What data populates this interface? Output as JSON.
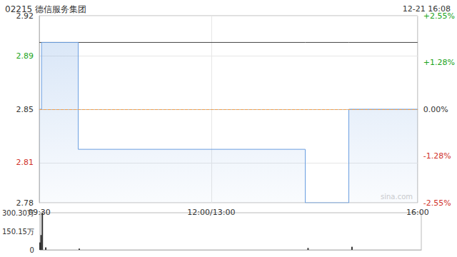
{
  "chart_data": [
    {
      "type": "line",
      "title": "02215 德信服务集团",
      "subtitle": "12-21 16:08",
      "watermark": "sina.com",
      "x": [
        0,
        2,
        34,
        232,
        270,
        330
      ],
      "xlim": [
        0,
        330
      ],
      "xticks": [
        {
          "value": 0,
          "label": "09:30"
        },
        {
          "value": 150,
          "label": "12:00/13:00"
        },
        {
          "value": 330,
          "label": "16:00"
        }
      ],
      "series": [
        {
          "type": "area",
          "color": "#6a9ee0",
          "line_style": "step",
          "values": [
            2.85,
            2.9,
            2.82,
            2.78,
            2.85,
            2.85
          ]
        },
        {
          "type": "line",
          "color": "#444444",
          "values": [
            2.9,
            2.9,
            2.9,
            2.9,
            2.9,
            2.9
          ]
        }
      ],
      "prev_close": 2.85,
      "ylim": [
        2.78,
        2.92
      ],
      "yticks": [
        2.78,
        2.81,
        2.85,
        2.89,
        2.92
      ],
      "y2lim": [
        -2.55,
        2.55
      ],
      "y2ticks": [
        {
          "value": -2.55,
          "label": "-2.55%"
        },
        {
          "value": -1.28,
          "label": "-1.28%"
        },
        {
          "value": 0,
          "label": "0.00%"
        },
        {
          "value": 1.28,
          "label": "+1.28%"
        },
        {
          "value": 2.55,
          "label": "+2.55%"
        }
      ],
      "grid": true
    },
    {
      "type": "bar",
      "x": [
        0,
        1,
        2,
        5,
        34,
        232,
        270
      ],
      "xlim": [
        0,
        330
      ],
      "values": [
        60,
        120,
        300.3,
        20,
        10,
        15,
        25
      ],
      "color": "#333333",
      "ylim": [
        0,
        300.3
      ],
      "yticks": [
        0,
        {
          "value": 150.15,
          "label": "150.15万"
        },
        {
          "value": 300.3,
          "label": "300.30万"
        }
      ],
      "tick_labels": "y"
    }
  ]
}
